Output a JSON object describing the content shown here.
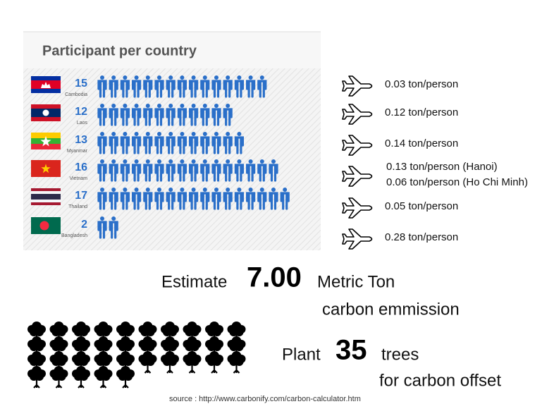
{
  "header": {
    "title": "Participant per country"
  },
  "countries": [
    {
      "name": "Cambodia",
      "count": 15,
      "emission": [
        "0.03 ton/person"
      ]
    },
    {
      "name": "Laos",
      "count": 12,
      "emission": [
        "0.12 ton/person"
      ]
    },
    {
      "name": "Myanmar",
      "count": 13,
      "emission": [
        "0.14 ton/person"
      ]
    },
    {
      "name": "Vietnam",
      "count": 16,
      "emission": [
        "0.13 ton/person (Hanoi)",
        "0.06 ton/person (Ho Chi Minh)"
      ]
    },
    {
      "name": "Thailand",
      "count": 17,
      "emission": [
        "0.05 ton/person"
      ]
    },
    {
      "name": "Bangladesh",
      "count": 2,
      "emission": [
        "0.28 ton/person"
      ]
    }
  ],
  "estimate": {
    "prefix": "Estimate",
    "amount": "7.00",
    "unit": "Metric Ton",
    "suffix": "carbon emmission"
  },
  "plant": {
    "prefix": "Plant",
    "count": 35,
    "unit": "trees",
    "suffix": "for carbon offset"
  },
  "source": "source : http://www.carbonify.com/carbon-calculator.htm"
}
